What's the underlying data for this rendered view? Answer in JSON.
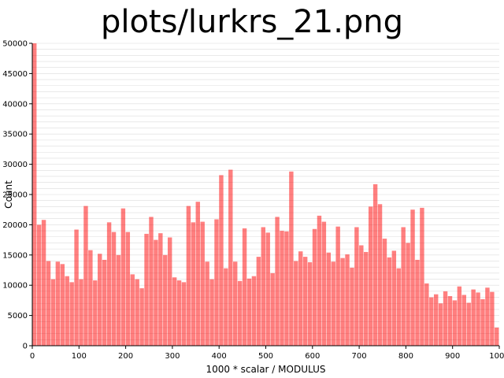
{
  "title": "plots/lurkrs_21.png",
  "chart_data": {
    "type": "bar",
    "xlabel": "1000 * scalar / MODULUS",
    "ylabel": "Count",
    "xlim": [
      0,
      1000
    ],
    "ylim": [
      0,
      50000
    ],
    "x_ticks": [
      0,
      100,
      200,
      300,
      400,
      500,
      600,
      700,
      800,
      900,
      1000
    ],
    "y_ticks": [
      0,
      5000,
      10000,
      15000,
      20000,
      25000,
      30000,
      35000,
      40000,
      45000,
      50000
    ],
    "grid": "horizontal",
    "bar_color": "#ff0000",
    "bar_opacity": 0.5,
    "bin_width": 10,
    "series": [
      {
        "x": [
          0,
          10,
          20,
          30,
          40,
          50,
          60,
          70,
          80,
          90,
          100,
          110,
          120,
          130,
          140,
          150,
          160,
          170,
          180,
          190,
          200,
          210,
          220,
          230,
          240,
          250,
          260,
          270,
          280,
          290,
          300,
          310,
          320,
          330,
          340,
          350,
          360,
          370,
          380,
          390,
          400,
          410,
          420,
          430,
          440,
          450,
          460,
          470,
          480,
          490,
          500,
          510,
          520,
          530,
          540,
          550,
          560,
          570,
          580,
          590,
          600,
          610,
          620,
          630,
          640,
          650,
          660,
          670,
          680,
          690,
          700,
          710,
          720,
          730,
          740,
          750,
          760,
          770,
          780,
          790,
          800,
          810,
          820,
          830,
          840,
          850,
          860,
          870,
          880,
          890,
          900,
          910,
          920,
          930,
          940,
          950,
          960,
          970,
          980,
          990
        ],
        "values": [
          50000,
          20000,
          20800,
          14000,
          11000,
          13900,
          13500,
          11500,
          10500,
          19200,
          11000,
          23100,
          15800,
          10800,
          15200,
          14200,
          20400,
          18800,
          15000,
          22700,
          18800,
          11800,
          11000,
          9500,
          18500,
          21300,
          17500,
          18600,
          15000,
          17900,
          11300,
          10800,
          10500,
          23100,
          20400,
          23800,
          20500,
          13900,
          11000,
          20900,
          28200,
          12800,
          29100,
          13900,
          10700,
          19400,
          11100,
          11500,
          14700,
          19600,
          18700,
          12000,
          21300,
          19000,
          18900,
          28800,
          14000,
          15600,
          14700,
          13800,
          19300,
          21500,
          20500,
          15400,
          13900,
          19700,
          14500,
          15100,
          12900,
          19600,
          16600,
          15500,
          23000,
          26700,
          23400,
          17700,
          14600,
          15700,
          12800,
          19600,
          17000,
          22500,
          14200,
          22800,
          10300,
          8000,
          8500,
          7000,
          9000,
          8200,
          7500,
          9800,
          8400,
          7100,
          9300,
          8800,
          7700,
          9600,
          8900,
          3000
        ]
      }
    ]
  }
}
